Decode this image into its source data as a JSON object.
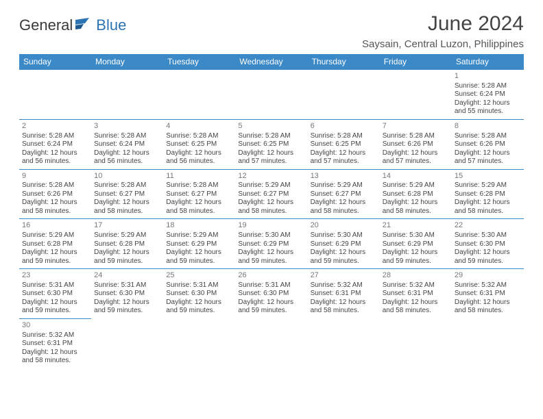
{
  "logo": {
    "dark": "General",
    "blue": "Blue"
  },
  "title": "June 2024",
  "location": "Saysain, Central Luzon, Philippines",
  "colors": {
    "header_bg": "#3b89c7",
    "header_text": "#ffffff",
    "cell_border": "#3b89c7",
    "text": "#444444",
    "daynum": "#777777",
    "logo_blue": "#2d74b5",
    "logo_dark": "#3a3a3a",
    "background": "#ffffff"
  },
  "weekdays": [
    "Sunday",
    "Monday",
    "Tuesday",
    "Wednesday",
    "Thursday",
    "Friday",
    "Saturday"
  ],
  "weeks": [
    [
      null,
      null,
      null,
      null,
      null,
      null,
      {
        "n": "1",
        "sr": "Sunrise: 5:28 AM",
        "ss": "Sunset: 6:24 PM",
        "d1": "Daylight: 12 hours",
        "d2": "and 55 minutes."
      }
    ],
    [
      {
        "n": "2",
        "sr": "Sunrise: 5:28 AM",
        "ss": "Sunset: 6:24 PM",
        "d1": "Daylight: 12 hours",
        "d2": "and 56 minutes."
      },
      {
        "n": "3",
        "sr": "Sunrise: 5:28 AM",
        "ss": "Sunset: 6:24 PM",
        "d1": "Daylight: 12 hours",
        "d2": "and 56 minutes."
      },
      {
        "n": "4",
        "sr": "Sunrise: 5:28 AM",
        "ss": "Sunset: 6:25 PM",
        "d1": "Daylight: 12 hours",
        "d2": "and 56 minutes."
      },
      {
        "n": "5",
        "sr": "Sunrise: 5:28 AM",
        "ss": "Sunset: 6:25 PM",
        "d1": "Daylight: 12 hours",
        "d2": "and 57 minutes."
      },
      {
        "n": "6",
        "sr": "Sunrise: 5:28 AM",
        "ss": "Sunset: 6:25 PM",
        "d1": "Daylight: 12 hours",
        "d2": "and 57 minutes."
      },
      {
        "n": "7",
        "sr": "Sunrise: 5:28 AM",
        "ss": "Sunset: 6:26 PM",
        "d1": "Daylight: 12 hours",
        "d2": "and 57 minutes."
      },
      {
        "n": "8",
        "sr": "Sunrise: 5:28 AM",
        "ss": "Sunset: 6:26 PM",
        "d1": "Daylight: 12 hours",
        "d2": "and 57 minutes."
      }
    ],
    [
      {
        "n": "9",
        "sr": "Sunrise: 5:28 AM",
        "ss": "Sunset: 6:26 PM",
        "d1": "Daylight: 12 hours",
        "d2": "and 58 minutes."
      },
      {
        "n": "10",
        "sr": "Sunrise: 5:28 AM",
        "ss": "Sunset: 6:27 PM",
        "d1": "Daylight: 12 hours",
        "d2": "and 58 minutes."
      },
      {
        "n": "11",
        "sr": "Sunrise: 5:28 AM",
        "ss": "Sunset: 6:27 PM",
        "d1": "Daylight: 12 hours",
        "d2": "and 58 minutes."
      },
      {
        "n": "12",
        "sr": "Sunrise: 5:29 AM",
        "ss": "Sunset: 6:27 PM",
        "d1": "Daylight: 12 hours",
        "d2": "and 58 minutes."
      },
      {
        "n": "13",
        "sr": "Sunrise: 5:29 AM",
        "ss": "Sunset: 6:27 PM",
        "d1": "Daylight: 12 hours",
        "d2": "and 58 minutes."
      },
      {
        "n": "14",
        "sr": "Sunrise: 5:29 AM",
        "ss": "Sunset: 6:28 PM",
        "d1": "Daylight: 12 hours",
        "d2": "and 58 minutes."
      },
      {
        "n": "15",
        "sr": "Sunrise: 5:29 AM",
        "ss": "Sunset: 6:28 PM",
        "d1": "Daylight: 12 hours",
        "d2": "and 58 minutes."
      }
    ],
    [
      {
        "n": "16",
        "sr": "Sunrise: 5:29 AM",
        "ss": "Sunset: 6:28 PM",
        "d1": "Daylight: 12 hours",
        "d2": "and 59 minutes."
      },
      {
        "n": "17",
        "sr": "Sunrise: 5:29 AM",
        "ss": "Sunset: 6:28 PM",
        "d1": "Daylight: 12 hours",
        "d2": "and 59 minutes."
      },
      {
        "n": "18",
        "sr": "Sunrise: 5:29 AM",
        "ss": "Sunset: 6:29 PM",
        "d1": "Daylight: 12 hours",
        "d2": "and 59 minutes."
      },
      {
        "n": "19",
        "sr": "Sunrise: 5:30 AM",
        "ss": "Sunset: 6:29 PM",
        "d1": "Daylight: 12 hours",
        "d2": "and 59 minutes."
      },
      {
        "n": "20",
        "sr": "Sunrise: 5:30 AM",
        "ss": "Sunset: 6:29 PM",
        "d1": "Daylight: 12 hours",
        "d2": "and 59 minutes."
      },
      {
        "n": "21",
        "sr": "Sunrise: 5:30 AM",
        "ss": "Sunset: 6:29 PM",
        "d1": "Daylight: 12 hours",
        "d2": "and 59 minutes."
      },
      {
        "n": "22",
        "sr": "Sunrise: 5:30 AM",
        "ss": "Sunset: 6:30 PM",
        "d1": "Daylight: 12 hours",
        "d2": "and 59 minutes."
      }
    ],
    [
      {
        "n": "23",
        "sr": "Sunrise: 5:31 AM",
        "ss": "Sunset: 6:30 PM",
        "d1": "Daylight: 12 hours",
        "d2": "and 59 minutes."
      },
      {
        "n": "24",
        "sr": "Sunrise: 5:31 AM",
        "ss": "Sunset: 6:30 PM",
        "d1": "Daylight: 12 hours",
        "d2": "and 59 minutes."
      },
      {
        "n": "25",
        "sr": "Sunrise: 5:31 AM",
        "ss": "Sunset: 6:30 PM",
        "d1": "Daylight: 12 hours",
        "d2": "and 59 minutes."
      },
      {
        "n": "26",
        "sr": "Sunrise: 5:31 AM",
        "ss": "Sunset: 6:30 PM",
        "d1": "Daylight: 12 hours",
        "d2": "and 59 minutes."
      },
      {
        "n": "27",
        "sr": "Sunrise: 5:32 AM",
        "ss": "Sunset: 6:31 PM",
        "d1": "Daylight: 12 hours",
        "d2": "and 58 minutes."
      },
      {
        "n": "28",
        "sr": "Sunrise: 5:32 AM",
        "ss": "Sunset: 6:31 PM",
        "d1": "Daylight: 12 hours",
        "d2": "and 58 minutes."
      },
      {
        "n": "29",
        "sr": "Sunrise: 5:32 AM",
        "ss": "Sunset: 6:31 PM",
        "d1": "Daylight: 12 hours",
        "d2": "and 58 minutes."
      }
    ],
    [
      {
        "n": "30",
        "sr": "Sunrise: 5:32 AM",
        "ss": "Sunset: 6:31 PM",
        "d1": "Daylight: 12 hours",
        "d2": "and 58 minutes."
      },
      null,
      null,
      null,
      null,
      null,
      null
    ]
  ]
}
